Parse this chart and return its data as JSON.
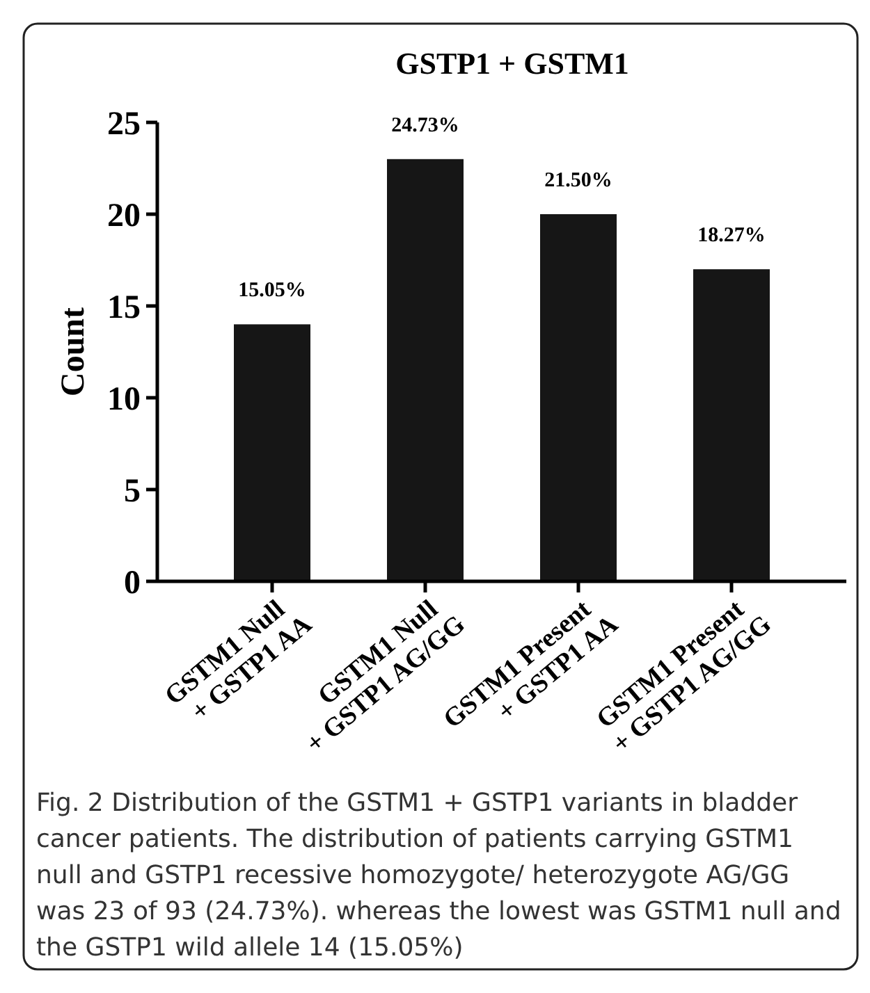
{
  "chart_data": {
    "type": "bar",
    "title": "GSTP1 + GSTM1",
    "ylabel": "Count",
    "categories": [
      "GSTM1 Null\n+ GSTP1 AA",
      "GSTM1 Null\n+ GSTP1 AG/GG",
      "GSTM1 Present\n+ GSTP1 AA",
      "GSTM1 Present\n+ GSTP1 AG/GG"
    ],
    "values": [
      14,
      23,
      20,
      17
    ],
    "color": "#161616",
    "ylim": [
      0,
      25
    ],
    "yticks": [
      0,
      5,
      10,
      15,
      20,
      25
    ],
    "grid": false,
    "annotations": [
      {
        "text": "15.05%",
        "x": "GSTM1 Null\n+ GSTP1 AA",
        "y": 14
      },
      {
        "text": "24.73%",
        "x": "GSTM1 Null\n+ GSTP1 AG/GG",
        "y": 23
      },
      {
        "text": "21.50%",
        "x": "GSTM1 Present\n+ GSTP1 AA",
        "y": 20
      },
      {
        "text": "18.27%",
        "x": "GSTM1 Present\n+ GSTP1 AG/GG",
        "y": 17
      },
      "Fig. 2 Distribution of the GSTM1 + GSTP1 variants in bladder cancer patients. The distribution of patients carrying GSTM1 null and GSTP1 recessive homozygote/ heterozygote AG/GG was 23 of 93 (24.73%). whereas the lowest was GSTM1 null and the GSTP1 wild allele 14 (15.05%)"
    ]
  }
}
